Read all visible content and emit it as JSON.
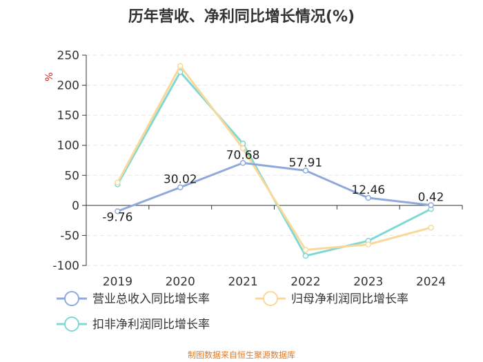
{
  "chart_data": {
    "type": "line",
    "title": "历年营收、净利同比增长情况(%)",
    "ylabel": "%",
    "categories": [
      "2019",
      "2020",
      "2021",
      "2022",
      "2023",
      "2024"
    ],
    "ylim": [
      -100,
      250
    ],
    "yticks": [
      250,
      200,
      150,
      100,
      50,
      0,
      -50,
      -100
    ],
    "grid": true,
    "legend_position": "bottom",
    "series": [
      {
        "name": "营业总收入同比增长率",
        "color": "#8eaadb",
        "values": [
          -9.76,
          30.02,
          70.68,
          57.91,
          12.46,
          0.42
        ],
        "labels": [
          "-9.76",
          "30.02",
          "70.68",
          "57.91",
          "12.46",
          "0.42"
        ]
      },
      {
        "name": "归母净利润同比增长率",
        "color": "#f9d99a",
        "values": [
          38,
          232,
          95,
          -74,
          -65,
          -37
        ]
      },
      {
        "name": "扣非净利润同比增长率",
        "color": "#7fd8d4",
        "values": [
          35,
          222,
          103,
          -84,
          -59,
          -6
        ]
      }
    ]
  },
  "source_text": "制图数据来自恒生聚源数据库"
}
